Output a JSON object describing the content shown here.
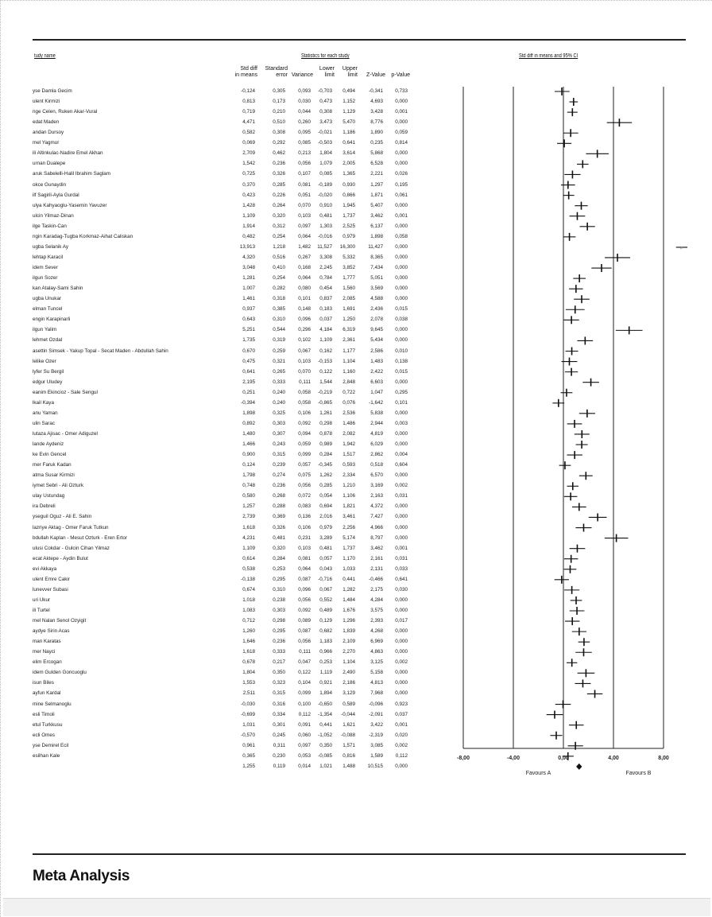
{
  "headers": {
    "study_name": "tudy name",
    "stats_group": "Statistics for each study",
    "plot_title": "Std diff in means and 95% CI",
    "columns": [
      {
        "key": "std_diff",
        "line1": "Std diff",
        "line2": "in means"
      },
      {
        "key": "std_err",
        "line1": "Standard",
        "line2": "error"
      },
      {
        "key": "variance",
        "line1": "",
        "line2": "Variance"
      },
      {
        "key": "lower",
        "line1": "Lower",
        "line2": "limit"
      },
      {
        "key": "upper",
        "line1": "Upper",
        "line2": "limit"
      },
      {
        "key": "z",
        "line1": "",
        "line2": "Z-Value"
      },
      {
        "key": "p",
        "line1": "",
        "line2": "p-Value"
      }
    ]
  },
  "footer": {
    "title": "Meta Analysis"
  },
  "chart_data": {
    "type": "forest",
    "title": "Std diff in means and 95% CI",
    "xlim": [
      -8,
      8
    ],
    "x_ticks": [
      "-8,00",
      "-4,00",
      "0,00",
      "4,00",
      "8,00"
    ],
    "x_tick_values": [
      -8,
      -4,
      0,
      4,
      8
    ],
    "left_label": "Favours A",
    "right_label": "Favours B",
    "studies": [
      {
        "name": "yse Damla Gecim",
        "sd": "-0,124",
        "se": "0,305",
        "var": "0,093",
        "lo": "-0,703",
        "hi": "0,494",
        "z": "-0,341",
        "p": "0,733",
        "est": -0.124,
        "low": -0.703,
        "high": 0.494
      },
      {
        "name": "ulent Kirmizi",
        "sd": "0,813",
        "se": "0,173",
        "var": "0,030",
        "lo": "0,473",
        "hi": "1,152",
        "z": "4,693",
        "p": "0,000",
        "est": 0.813,
        "low": 0.473,
        "high": 1.152
      },
      {
        "name": "nge Celen, Ruken Akar-Vural",
        "sd": "0,719",
        "se": "0,210",
        "var": "0,044",
        "lo": "0,308",
        "hi": "1,129",
        "z": "3,428",
        "p": "0,001",
        "est": 0.719,
        "low": 0.308,
        "high": 1.129
      },
      {
        "name": "edat Maden",
        "sd": "4,471",
        "se": "0,510",
        "var": "0,260",
        "lo": "3,473",
        "hi": "5,470",
        "z": "8,776",
        "p": "0,000",
        "est": 4.471,
        "low": 3.473,
        "high": 5.47
      },
      {
        "name": "andan Dursoy",
        "sd": "0,582",
        "se": "0,308",
        "var": "0,095",
        "lo": "-0,021",
        "hi": "1,186",
        "z": "1,890",
        "p": "0,059",
        "est": 0.582,
        "low": -0.021,
        "high": 1.186
      },
      {
        "name": "mel Yagmur",
        "sd": "0,069",
        "se": "0,292",
        "var": "0,085",
        "lo": "-0,503",
        "hi": "0,641",
        "z": "0,235",
        "p": "0,814",
        "est": 0.069,
        "low": -0.503,
        "high": 0.641
      },
      {
        "name": "ili Altinkulac-Nadire Emel Akhan",
        "sd": "2,709",
        "se": "0,462",
        "var": "0,213",
        "lo": "1,804",
        "hi": "3,614",
        "z": "5,868",
        "p": "0,000",
        "est": 2.709,
        "low": 1.804,
        "high": 3.614
      },
      {
        "name": "urnan Dualepe",
        "sd": "1,542",
        "se": "0,236",
        "var": "0,056",
        "lo": "1,079",
        "hi": "2,005",
        "z": "6,528",
        "p": "0,000",
        "est": 1.542,
        "low": 1.079,
        "high": 2.005
      },
      {
        "name": "aruk Sabelelli-Halil Ibrahim Saglam",
        "sd": "0,725",
        "se": "0,326",
        "var": "0,107",
        "lo": "0,085",
        "hi": "1,365",
        "z": "2,221",
        "p": "0,026",
        "est": 0.725,
        "low": 0.085,
        "high": 1.365
      },
      {
        "name": "okce Gunaydin",
        "sd": "0,370",
        "se": "0,285",
        "var": "0,081",
        "lo": "-0,189",
        "hi": "0,930",
        "z": "1,297",
        "p": "0,195",
        "est": 0.37,
        "low": -0.189,
        "high": 0.93
      },
      {
        "name": "ilf Sagiril-Ayla Gurdal",
        "sd": "0,423",
        "se": "0,226",
        "var": "0,051",
        "lo": "-0,020",
        "hi": "0,866",
        "z": "1,871",
        "p": "0,061",
        "est": 0.423,
        "low": -0.02,
        "high": 0.866
      },
      {
        "name": "ulya Kahyaoglu-Yasemin Yavuzer",
        "sd": "1,428",
        "se": "0,264",
        "var": "0,070",
        "lo": "0,910",
        "hi": "1,945",
        "z": "5,407",
        "p": "0,000",
        "est": 1.428,
        "low": 0.91,
        "high": 1.945
      },
      {
        "name": "ulcin Yilmaz-Dinan",
        "sd": "1,109",
        "se": "0,320",
        "var": "0,103",
        "lo": "0,481",
        "hi": "1,737",
        "z": "3,462",
        "p": "0,001",
        "est": 1.109,
        "low": 0.481,
        "high": 1.737
      },
      {
        "name": "ilge Taskin-Can",
        "sd": "1,914",
        "se": "0,312",
        "var": "0,097",
        "lo": "1,303",
        "hi": "2,525",
        "z": "6,137",
        "p": "0,000",
        "est": 1.914,
        "low": 1.303,
        "high": 2.525
      },
      {
        "name": "ngin Karadag-Tugba Korkmaz-Aihat Caliskan",
        "sd": "0,482",
        "se": "0,254",
        "var": "0,064",
        "lo": "-0,016",
        "hi": "0,979",
        "z": "1,898",
        "p": "0,058",
        "est": 0.482,
        "low": -0.016,
        "high": 0.979
      },
      {
        "name": "ugba Selanik Ay",
        "sd": "13,913",
        "se": "1,218",
        "var": "1,482",
        "lo": "11,527",
        "hi": "16,300",
        "z": "11,427",
        "p": "0,000",
        "est": 13.913,
        "low": 11.527,
        "high": 16.3
      },
      {
        "name": "lehtap Karacil",
        "sd": "4,320",
        "se": "0,516",
        "var": "0,267",
        "lo": "3,308",
        "hi": "5,332",
        "z": "8,365",
        "p": "0,000",
        "est": 4.32,
        "low": 3.308,
        "high": 5.332
      },
      {
        "name": "idem Sever",
        "sd": "3,048",
        "se": "0,410",
        "var": "0,168",
        "lo": "2,245",
        "hi": "3,852",
        "z": "7,434",
        "p": "0,000",
        "est": 3.048,
        "low": 2.245,
        "high": 3.852
      },
      {
        "name": "ilgun Sozer",
        "sd": "1,281",
        "se": "0,254",
        "var": "0,064",
        "lo": "0,784",
        "hi": "1,777",
        "z": "5,051",
        "p": "0,000",
        "est": 1.281,
        "low": 0.784,
        "high": 1.777
      },
      {
        "name": "kan Atalay-Sami Sahin",
        "sd": "1,007",
        "se": "0,282",
        "var": "0,080",
        "lo": "0,454",
        "hi": "1,560",
        "z": "3,569",
        "p": "0,000",
        "est": 1.007,
        "low": 0.454,
        "high": 1.56
      },
      {
        "name": "ugba Unukar",
        "sd": "1,461",
        "se": "0,318",
        "var": "0,101",
        "lo": "0,837",
        "hi": "2,085",
        "z": "4,588",
        "p": "0,000",
        "est": 1.461,
        "low": 0.837,
        "high": 2.085
      },
      {
        "name": "elman Tuncel",
        "sd": "0,937",
        "se": "0,385",
        "var": "0,148",
        "lo": "0,183",
        "hi": "1,691",
        "z": "2,436",
        "p": "0,015",
        "est": 0.937,
        "low": 0.183,
        "high": 1.691
      },
      {
        "name": "engin Karapinarli",
        "sd": "0,643",
        "se": "0,310",
        "var": "0,096",
        "lo": "0,037",
        "hi": "1,250",
        "z": "2,078",
        "p": "0,038",
        "est": 0.643,
        "low": 0.037,
        "high": 1.25
      },
      {
        "name": "ilgun Yalim",
        "sd": "5,251",
        "se": "0,544",
        "var": "0,296",
        "lo": "4,184",
        "hi": "6,319",
        "z": "9,645",
        "p": "0,000",
        "est": 5.251,
        "low": 4.184,
        "high": 6.319
      },
      {
        "name": "lehmet Ozdal",
        "sd": "1,735",
        "se": "0,319",
        "var": "0,102",
        "lo": "1,109",
        "hi": "2,361",
        "z": "5,434",
        "p": "0,000",
        "est": 1.735,
        "low": 1.109,
        "high": 2.361
      },
      {
        "name": "asettin Simsek - Yakup Topal - Secat Maden - Abdullah Sahin",
        "sd": "0,670",
        "se": "0,259",
        "var": "0,067",
        "lo": "0,162",
        "hi": "1,177",
        "z": "2,586",
        "p": "0,010",
        "est": 0.67,
        "low": 0.162,
        "high": 1.177
      },
      {
        "name": "lelike Ozer",
        "sd": "0,475",
        "se": "0,321",
        "var": "0,103",
        "lo": "-0,153",
        "hi": "1,104",
        "z": "1,483",
        "p": "0,138",
        "est": 0.475,
        "low": -0.153,
        "high": 1.104
      },
      {
        "name": "lyfer Su Bergil",
        "sd": "0,641",
        "se": "0,265",
        "var": "0,070",
        "lo": "0,122",
        "hi": "1,160",
        "z": "2,422",
        "p": "0,015",
        "est": 0.641,
        "low": 0.122,
        "high": 1.16
      },
      {
        "name": "edgur Uludey",
        "sd": "2,195",
        "se": "0,333",
        "var": "0,111",
        "lo": "1,544",
        "hi": "2,848",
        "z": "6,603",
        "p": "0,000",
        "est": 2.195,
        "low": 1.544,
        "high": 2.848
      },
      {
        "name": "eanim Ekincioz - Sale Sengul",
        "sd": "0,251",
        "se": "0,240",
        "var": "0,058",
        "lo": "-0,219",
        "hi": "0,722",
        "z": "1,047",
        "p": "0,295",
        "est": 0.251,
        "low": -0.219,
        "high": 0.722
      },
      {
        "name": "lkail Kaya",
        "sd": "-0,394",
        "se": "0,240",
        "var": "0,058",
        "lo": "-0,865",
        "hi": "0,076",
        "z": "-1,642",
        "p": "0,101",
        "est": -0.394,
        "low": -0.865,
        "high": 0.076
      },
      {
        "name": "anu Yaman",
        "sd": "1,898",
        "se": "0,325",
        "var": "0,106",
        "lo": "1,261",
        "hi": "2,536",
        "z": "5,838",
        "p": "0,000",
        "est": 1.898,
        "low": 1.261,
        "high": 2.536
      },
      {
        "name": "ulin Sarac",
        "sd": "0,892",
        "se": "0,303",
        "var": "0,092",
        "lo": "0,298",
        "hi": "1,486",
        "z": "2,944",
        "p": "0,003",
        "est": 0.892,
        "low": 0.298,
        "high": 1.486
      },
      {
        "name": "lutaza Ajisac - Omer Adiguzel",
        "sd": "1,480",
        "se": "0,307",
        "var": "0,094",
        "lo": "0,878",
        "hi": "2,082",
        "z": "4,819",
        "p": "0,000",
        "est": 1.48,
        "low": 0.878,
        "high": 2.082
      },
      {
        "name": "lande Aydeniz",
        "sd": "1,466",
        "se": "0,243",
        "var": "0,059",
        "lo": "0,989",
        "hi": "1,942",
        "z": "6,029",
        "p": "0,000",
        "est": 1.466,
        "low": 0.989,
        "high": 1.942
      },
      {
        "name": "ke Evin Gencel",
        "sd": "0,900",
        "se": "0,315",
        "var": "0,099",
        "lo": "0,284",
        "hi": "1,517",
        "z": "2,862",
        "p": "0,004",
        "est": 0.9,
        "low": 0.284,
        "high": 1.517
      },
      {
        "name": "mer Faruk Kadan",
        "sd": "0,124",
        "se": "0,239",
        "var": "0,057",
        "lo": "-0,345",
        "hi": "0,593",
        "z": "0,518",
        "p": "0,604",
        "est": 0.124,
        "low": -0.345,
        "high": 0.593
      },
      {
        "name": "atma Susar Kirmizi",
        "sd": "1,798",
        "se": "0,274",
        "var": "0,075",
        "lo": "1,262",
        "hi": "2,334",
        "z": "6,570",
        "p": "0,000",
        "est": 1.798,
        "low": 1.262,
        "high": 2.334
      },
      {
        "name": "iymet Sebri - Ali Ozturk",
        "sd": "0,748",
        "se": "0,236",
        "var": "0,056",
        "lo": "0,285",
        "hi": "1,210",
        "z": "3,169",
        "p": "0,002",
        "est": 0.748,
        "low": 0.285,
        "high": 1.21
      },
      {
        "name": "ulay Ustundag",
        "sd": "0,580",
        "se": "0,268",
        "var": "0,072",
        "lo": "0,054",
        "hi": "1,106",
        "z": "2,163",
        "p": "0,031",
        "est": 0.58,
        "low": 0.054,
        "high": 1.106
      },
      {
        "name": "ira Debreli",
        "sd": "1,257",
        "se": "0,288",
        "var": "0,083",
        "lo": "0,694",
        "hi": "1,821",
        "z": "4,372",
        "p": "0,000",
        "est": 1.257,
        "low": 0.694,
        "high": 1.821
      },
      {
        "name": "yseguil Oguz - Ali E. Sahin",
        "sd": "2,739",
        "se": "0,369",
        "var": "0,136",
        "lo": "2,016",
        "hi": "3,461",
        "z": "7,427",
        "p": "0,000",
        "est": 2.739,
        "low": 2.016,
        "high": 3.461
      },
      {
        "name": "lazriye Aktag - Omer Faruk Tutkun",
        "sd": "1,618",
        "se": "0,326",
        "var": "0,106",
        "lo": "0,979",
        "hi": "2,256",
        "z": "4,966",
        "p": "0,000",
        "est": 1.618,
        "low": 0.979,
        "high": 2.256
      },
      {
        "name": "bdullah Kaplan - Mesut Ozturk - Eren Ertor",
        "sd": "4,231",
        "se": "0,481",
        "var": "0,231",
        "lo": "3,289",
        "hi": "5,174",
        "z": "8,797",
        "p": "0,000",
        "est": 4.231,
        "low": 3.289,
        "high": 5.174
      },
      {
        "name": "ulusi Cokdar - Gulcin Cihan Yilmaz",
        "sd": "1,109",
        "se": "0,320",
        "var": "0,103",
        "lo": "0,481",
        "hi": "1,737",
        "z": "3,462",
        "p": "0,001",
        "est": 1.109,
        "low": 0.481,
        "high": 1.737
      },
      {
        "name": "ecat Aktepe - Aydin Bulut",
        "sd": "0,614",
        "se": "0,284",
        "var": "0,081",
        "lo": "0,057",
        "hi": "1,170",
        "z": "2,161",
        "p": "0,031",
        "est": 0.614,
        "low": 0.057,
        "high": 1.17
      },
      {
        "name": "evi Akkaya",
        "sd": "0,538",
        "se": "0,253",
        "var": "0,064",
        "lo": "0,043",
        "hi": "1,033",
        "z": "2,131",
        "p": "0,033",
        "est": 0.538,
        "low": 0.043,
        "high": 1.033
      },
      {
        "name": "ulent Emre Cakir",
        "sd": "-0,138",
        "se": "0,295",
        "var": "0,087",
        "lo": "-0,716",
        "hi": "0,441",
        "z": "-0,466",
        "p": "0,641",
        "est": -0.138,
        "low": -0.716,
        "high": 0.441
      },
      {
        "name": "lunevver Subasi",
        "sd": "0,674",
        "se": "0,310",
        "var": "0,096",
        "lo": "0,067",
        "hi": "1,282",
        "z": "2,175",
        "p": "0,030",
        "est": 0.674,
        "low": 0.067,
        "high": 1.282
      },
      {
        "name": "uri Ukur",
        "sd": "1,018",
        "se": "0,238",
        "var": "0,056",
        "lo": "0,552",
        "hi": "1,484",
        "z": "4,284",
        "p": "0,000",
        "est": 1.018,
        "low": 0.552,
        "high": 1.484
      },
      {
        "name": "ili Turtel",
        "sd": "1,083",
        "se": "0,303",
        "var": "0,092",
        "lo": "0,489",
        "hi": "1,676",
        "z": "3,575",
        "p": "0,000",
        "est": 1.083,
        "low": 0.489,
        "high": 1.676
      },
      {
        "name": "mel Nalan Senol Ozyigit",
        "sd": "0,712",
        "se": "0,298",
        "var": "0,089",
        "lo": "0,129",
        "hi": "1,296",
        "z": "2,393",
        "p": "0,017",
        "est": 0.712,
        "low": 0.129,
        "high": 1.296
      },
      {
        "name": "aydye Sirin Acas",
        "sd": "1,260",
        "se": "0,295",
        "var": "0,087",
        "lo": "0,682",
        "hi": "1,839",
        "z": "4,268",
        "p": "0,000",
        "est": 1.26,
        "low": 0.682,
        "high": 1.839
      },
      {
        "name": "man Karatas",
        "sd": "1,646",
        "se": "0,236",
        "var": "0,056",
        "lo": "1,183",
        "hi": "2,109",
        "z": "6,969",
        "p": "0,000",
        "est": 1.646,
        "low": 1.183,
        "high": 2.109
      },
      {
        "name": "mer Nayci",
        "sd": "1,618",
        "se": "0,333",
        "var": "0,111",
        "lo": "0,966",
        "hi": "2,270",
        "z": "4,863",
        "p": "0,000",
        "est": 1.618,
        "low": 0.966,
        "high": 2.27
      },
      {
        "name": "elim Ercogan",
        "sd": "0,678",
        "se": "0,217",
        "var": "0,047",
        "lo": "0,253",
        "hi": "1,104",
        "z": "3,125",
        "p": "0,002",
        "est": 0.678,
        "low": 0.253,
        "high": 1.104
      },
      {
        "name": "idem Gulden Goncuoglu",
        "sd": "1,804",
        "se": "0,350",
        "var": "0,122",
        "lo": "1,119",
        "hi": "2,490",
        "z": "5,158",
        "p": "0,000",
        "est": 1.804,
        "low": 1.119,
        "high": 2.49
      },
      {
        "name": "isun Biles",
        "sd": "1,553",
        "se": "0,323",
        "var": "0,104",
        "lo": "0,921",
        "hi": "2,186",
        "z": "4,813",
        "p": "0,000",
        "est": 1.553,
        "low": 0.921,
        "high": 2.186
      },
      {
        "name": "ayfun Kardal",
        "sd": "2,511",
        "se": "0,315",
        "var": "0,099",
        "lo": "1,894",
        "hi": "3,129",
        "z": "7,968",
        "p": "0,000",
        "est": 2.511,
        "low": 1.894,
        "high": 3.129
      },
      {
        "name": "mine Selmanoglu",
        "sd": "-0,030",
        "se": "0,316",
        "var": "0,100",
        "lo": "-0,650",
        "hi": "0,589",
        "z": "-0,096",
        "p": "0,923",
        "est": -0.03,
        "low": -0.65,
        "high": 0.589
      },
      {
        "name": "esli Timoli",
        "sd": "-0,699",
        "se": "0,334",
        "var": "0,112",
        "lo": "-1,354",
        "hi": "-0,044",
        "z": "-2,091",
        "p": "0,037",
        "est": -0.699,
        "low": -1.354,
        "high": -0.044
      },
      {
        "name": "etul Turkkusu",
        "sd": "1,031",
        "se": "0,301",
        "var": "0,091",
        "lo": "0,441",
        "hi": "1,621",
        "z": "3,422",
        "p": "0,001",
        "est": 1.031,
        "low": 0.441,
        "high": 1.621
      },
      {
        "name": "ecli Omes",
        "sd": "-0,570",
        "se": "0,245",
        "var": "0,060",
        "lo": "-1,052",
        "hi": "-0,088",
        "z": "-2,319",
        "p": "0,020",
        "est": -0.57,
        "low": -1.052,
        "high": -0.088
      },
      {
        "name": "yse Demirel Ecil",
        "sd": "0,961",
        "se": "0,311",
        "var": "0,097",
        "lo": "0,350",
        "hi": "1,571",
        "z": "3,085",
        "p": "0,002",
        "est": 0.961,
        "low": 0.35,
        "high": 1.571
      },
      {
        "name": "esilhan Kale",
        "sd": "0,365",
        "se": "0,230",
        "var": "0,053",
        "lo": "-0,085",
        "hi": "0,816",
        "z": "1,589",
        "p": "0,112",
        "est": 0.365,
        "low": -0.085,
        "high": 0.816
      }
    ],
    "summary": {
      "sd": "1,255",
      "se": "0,119",
      "var": "0,014",
      "lo": "1,021",
      "hi": "1,488",
      "z": "10,515",
      "p": "0,000",
      "est": 1.255,
      "low": 1.021,
      "high": 1.488
    }
  }
}
